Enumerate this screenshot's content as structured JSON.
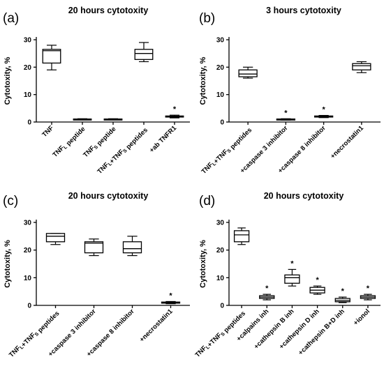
{
  "chart_data": [
    {
      "type": "box",
      "panel_label": "(a)",
      "title": "20 hours cytotoxity",
      "ylabel": "Cytotoxity, %",
      "ylim": [
        0,
        30
      ],
      "yticks": [
        "0",
        "10",
        "20",
        "30"
      ],
      "categories": [
        "TNF",
        "TNFL peptide",
        "TNFS peptide",
        "TNFL+TNFS peptides",
        "+ab TNFR1"
      ],
      "boxes": [
        {
          "min": 19,
          "q1": 21.5,
          "median": 26,
          "q3": 26.5,
          "max": 28,
          "star": ""
        },
        {
          "min": 0.8,
          "q1": 0.9,
          "median": 1,
          "q3": 1.1,
          "max": 1.2,
          "star": ""
        },
        {
          "min": 0.8,
          "q1": 0.9,
          "median": 1,
          "q3": 1.1,
          "max": 1.2,
          "star": ""
        },
        {
          "min": 22,
          "q1": 22.8,
          "median": 25,
          "q3": 26.5,
          "max": 29,
          "star": ""
        },
        {
          "min": 1.5,
          "q1": 1.8,
          "median": 2,
          "q3": 2.2,
          "max": 2.5,
          "star": "*"
        }
      ]
    },
    {
      "type": "box",
      "panel_label": "(b)",
      "title": "3 hours cytotoxity",
      "ylabel": "Cytotoxity, %",
      "ylim": [
        0,
        30
      ],
      "yticks": [
        "0",
        "10",
        "20",
        "30"
      ],
      "categories": [
        "TNFL+TNFS peptides",
        "+caspase 3 inhibitor",
        "+caspase 8 inhibitor",
        "+necrostatin1"
      ],
      "boxes": [
        {
          "min": 16,
          "q1": 16.5,
          "median": 17.5,
          "q3": 19,
          "max": 20,
          "star": ""
        },
        {
          "min": 0.7,
          "q1": 0.8,
          "median": 1,
          "q3": 1.1,
          "max": 1.2,
          "star": "*"
        },
        {
          "min": 1.6,
          "q1": 1.8,
          "median": 2,
          "q3": 2.2,
          "max": 2.4,
          "star": "*"
        },
        {
          "min": 18,
          "q1": 19,
          "median": 20.5,
          "q3": 21.3,
          "max": 22,
          "star": ""
        }
      ]
    },
    {
      "type": "box",
      "panel_label": "(c)",
      "title": "20 hours cytotoxity",
      "ylabel": "Cytotoxity, %",
      "ylim": [
        0,
        30
      ],
      "yticks": [
        "0",
        "10",
        "20",
        "30"
      ],
      "categories": [
        "TNFL+TNFS peptides",
        "+caspase 3 inhibitor",
        "+caspase 8 inhibitor",
        "+necrostatin1"
      ],
      "boxes": [
        {
          "min": 22,
          "q1": 23,
          "median": 25,
          "q3": 26,
          "max": 26,
          "star": ""
        },
        {
          "min": 18,
          "q1": 19,
          "median": 22.5,
          "q3": 23,
          "max": 24,
          "star": ""
        },
        {
          "min": 18,
          "q1": 19,
          "median": 20.5,
          "q3": 23,
          "max": 25,
          "star": ""
        },
        {
          "min": 0.6,
          "q1": 0.8,
          "median": 1,
          "q3": 1.2,
          "max": 1.4,
          "star": "*"
        }
      ]
    },
    {
      "type": "box",
      "panel_label": "(d)",
      "title": "20 hours cytotoxity",
      "ylabel": "Cytotoxity, %",
      "ylim": [
        0,
        30
      ],
      "yticks": [
        "0",
        "10",
        "20",
        "30"
      ],
      "categories": [
        "TNFL+TNFS peptides",
        "+calpains inh",
        "+cathepsin B inh",
        "+cathepsin D inh",
        "+cathepsin B+D inh",
        "+ionol"
      ],
      "boxes": [
        {
          "min": 22,
          "q1": 23,
          "median": 25.5,
          "q3": 27,
          "max": 28,
          "star": ""
        },
        {
          "min": 2,
          "q1": 2.5,
          "median": 3,
          "q3": 3.5,
          "max": 4,
          "star": "*"
        },
        {
          "min": 7,
          "q1": 8,
          "median": 10,
          "q3": 11,
          "max": 13,
          "star": "*"
        },
        {
          "min": 4,
          "q1": 4.5,
          "median": 5.5,
          "q3": 6.5,
          "max": 7,
          "star": "*"
        },
        {
          "min": 1,
          "q1": 1.3,
          "median": 1.8,
          "q3": 2.5,
          "max": 3,
          "star": "*"
        },
        {
          "min": 2,
          "q1": 2.5,
          "median": 3,
          "q3": 3.5,
          "max": 4,
          "star": "*"
        }
      ]
    }
  ]
}
